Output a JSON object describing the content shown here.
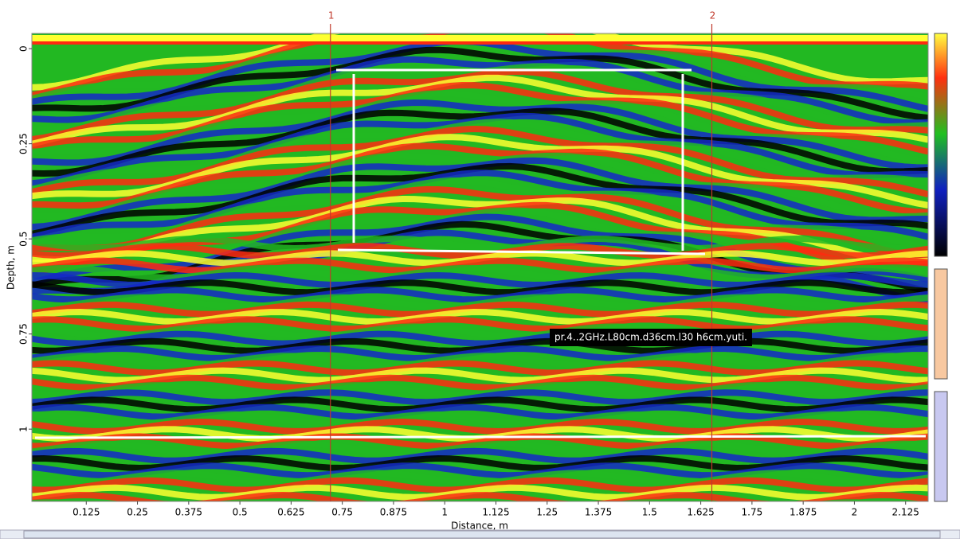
{
  "chart_data": {
    "type": "radargram",
    "xlabel": "Distance, m",
    "ylabel": "Depth, m",
    "xlim": [
      0,
      2.18
    ],
    "ylim": [
      -0.04,
      1.19
    ],
    "xticks": [
      0.125,
      0.25,
      0.375,
      0.5,
      0.625,
      0.75,
      0.875,
      1,
      1.125,
      1.25,
      1.375,
      1.5,
      1.625,
      1.75,
      1.875,
      2,
      2.125
    ],
    "yticks": [
      0,
      0.25,
      0.5,
      0.75,
      1
    ],
    "markers": [
      {
        "label": "1",
        "x": 0.721,
        "color": "#c0392b"
      },
      {
        "label": "2",
        "x": 1.652,
        "color": "#c0392b"
      }
    ],
    "annotation": "pr.4..2GHz.L80cm.d36cm.l30 h6cm.yuti."
  }
}
